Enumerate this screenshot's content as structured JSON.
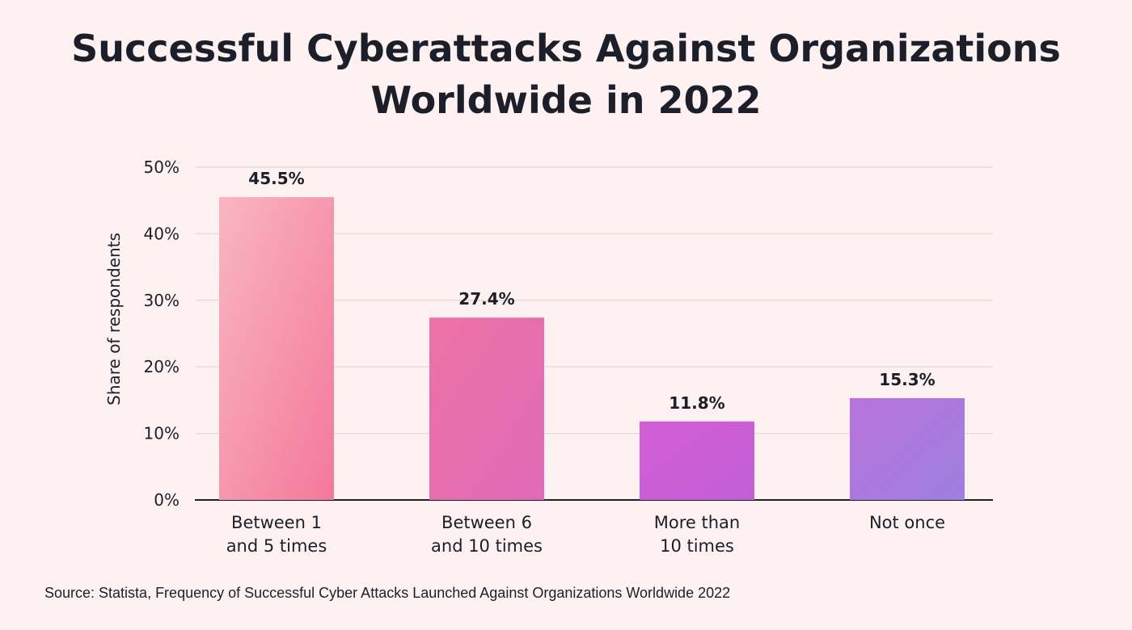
{
  "chart_data": {
    "type": "bar",
    "title_lines": [
      "Successful Cyberattacks Against Organizations",
      "Worldwide in 2022"
    ],
    "categories": [
      [
        "Between 1",
        "and 5 times"
      ],
      [
        "Between 6",
        "and 10 times"
      ],
      [
        "More than",
        "10 times"
      ],
      [
        "Not once"
      ]
    ],
    "values": [
      45.5,
      27.4,
      11.8,
      15.3
    ],
    "value_labels": [
      "45.5%",
      "27.4%",
      "11.8%",
      "15.3%"
    ],
    "ylabel": "Share of respondents",
    "xlabel": "",
    "ylim": [
      0,
      50
    ],
    "yticks": [
      0,
      10,
      20,
      30,
      40,
      50
    ],
    "ytick_labels": [
      "0%",
      "10%",
      "20%",
      "30%",
      "40%",
      "50%"
    ],
    "grid": true,
    "bar_gradients": [
      [
        "#f9b6c0",
        "#f4789b"
      ],
      [
        "#ee72a5",
        "#e06ab8"
      ],
      [
        "#d35ed4",
        "#c25fd6"
      ],
      [
        "#b873db",
        "#9d7edf"
      ]
    ],
    "gridline_color": "#e6dcdc",
    "axis_color": "#1c1f2a"
  },
  "source": "Source: Statista, Frequency of Successful Cyber Attacks Launched Against Organizations Worldwide 2022"
}
